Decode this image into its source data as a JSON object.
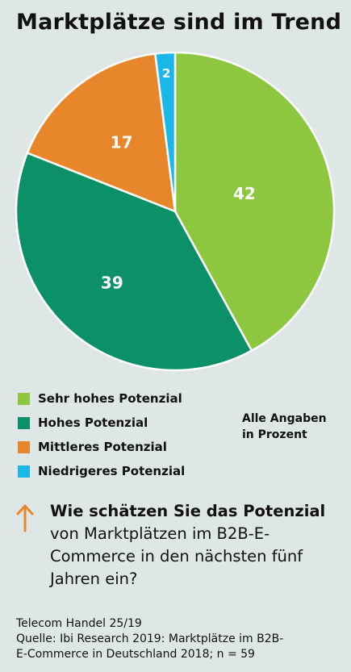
{
  "title": "Marktplätze sind im Trend",
  "colors": {
    "sehr_hoch": "#8dc63f",
    "hoch": "#0b9068",
    "mittel": "#e8862c",
    "niedrig": "#1ab7e8",
    "accent": "#e8862c"
  },
  "chart_data": {
    "type": "pie",
    "title": "Marktplätze sind im Trend",
    "categories": [
      "Sehr hohes Potenzial",
      "Hohes Potenzial",
      "Mittleres Potenzial",
      "Niedrigeres Potenzial"
    ],
    "values": [
      42,
      39,
      17,
      2
    ],
    "value_labels": [
      "42",
      "39",
      "17",
      "2"
    ],
    "unit": "Prozent",
    "legend_position": "bottom-left"
  },
  "legend": [
    {
      "label": "Sehr hohes Potenzial",
      "color": "#8dc63f"
    },
    {
      "label": "Hohes Potenzial",
      "color": "#0b9068"
    },
    {
      "label": "Mittleres Potenzial",
      "color": "#e8862c"
    },
    {
      "label": "Niedrigeres Potenzial",
      "color": "#1ab7e8"
    }
  ],
  "note": {
    "line1": "Alle Angaben",
    "line2": "in Prozent"
  },
  "question": {
    "bold_part": "Wie schätzen Sie das Potenzial",
    "rest_part": "von Marktplätzen im B2B-E-Commerce in den nächsten fünf Jahren ein?",
    "icon": "arrow-up-icon"
  },
  "footer": {
    "line1": "Telecom Handel 25/19",
    "line2": "Quelle: Ibi Research 2019: Marktplätze im B2B-",
    "line3": "E-Commerce in Deutschland 2018; n = 59"
  }
}
